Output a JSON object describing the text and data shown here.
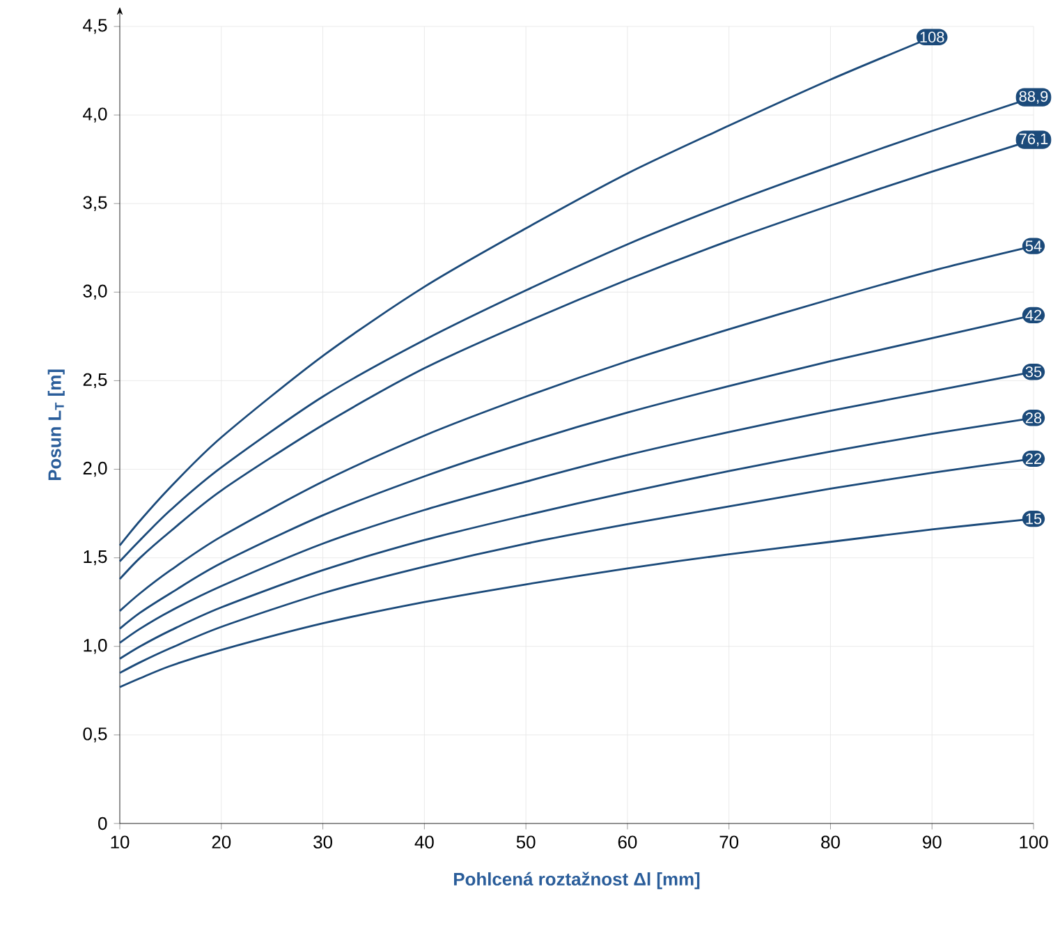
{
  "chart_data": {
    "type": "line",
    "xlabel": "Pohlcená roztažnost Δl [mm]",
    "ylabel": "Posun L$_{T}$ [m]",
    "x": [
      10,
      12,
      15,
      20,
      30,
      40,
      50,
      60,
      70,
      80,
      90,
      100
    ],
    "series": [
      {
        "name": "15",
        "color": "#1b4a7a",
        "values": [
          0.77,
          0.82,
          0.89,
          0.98,
          1.13,
          1.25,
          1.35,
          1.44,
          1.52,
          1.59,
          1.66,
          1.72
        ]
      },
      {
        "name": "22",
        "color": "#1b4a7a",
        "values": [
          0.85,
          0.91,
          0.99,
          1.11,
          1.3,
          1.45,
          1.58,
          1.69,
          1.79,
          1.89,
          1.98,
          2.06
        ]
      },
      {
        "name": "28",
        "color": "#1b4a7a",
        "values": [
          0.93,
          1.0,
          1.09,
          1.22,
          1.43,
          1.6,
          1.74,
          1.87,
          1.99,
          2.1,
          2.2,
          2.29
        ]
      },
      {
        "name": "35",
        "color": "#1b4a7a",
        "values": [
          1.02,
          1.1,
          1.2,
          1.34,
          1.58,
          1.77,
          1.93,
          2.08,
          2.21,
          2.33,
          2.44,
          2.55
        ]
      },
      {
        "name": "42",
        "color": "#1b4a7a",
        "values": [
          1.1,
          1.19,
          1.3,
          1.47,
          1.74,
          1.96,
          2.15,
          2.32,
          2.47,
          2.61,
          2.74,
          2.87
        ]
      },
      {
        "name": "54",
        "color": "#1b4a7a",
        "values": [
          1.2,
          1.3,
          1.43,
          1.62,
          1.93,
          2.19,
          2.41,
          2.61,
          2.79,
          2.96,
          3.12,
          3.26
        ]
      },
      {
        "name": "76,1",
        "color": "#1b4a7a",
        "values": [
          1.38,
          1.5,
          1.65,
          1.88,
          2.25,
          2.57,
          2.83,
          3.07,
          3.29,
          3.49,
          3.68,
          3.86
        ]
      },
      {
        "name": "88,9",
        "color": "#1b4a7a",
        "values": [
          1.48,
          1.6,
          1.77,
          2.01,
          2.41,
          2.73,
          3.01,
          3.27,
          3.5,
          3.71,
          3.91,
          4.1
        ]
      },
      {
        "name": "108",
        "color": "#1b4a7a",
        "values": [
          1.57,
          1.71,
          1.9,
          2.18,
          2.64,
          3.03,
          3.36,
          3.67,
          3.94,
          4.2,
          4.44,
          null
        ]
      }
    ],
    "xlim": [
      10,
      100
    ],
    "ylim": [
      0,
      4.5
    ],
    "xticks": [
      10,
      20,
      30,
      40,
      50,
      60,
      70,
      80,
      90,
      100
    ],
    "yticks": [
      {
        "value": 0,
        "label": "0"
      },
      {
        "value": 0.5,
        "label": "0,5"
      },
      {
        "value": 1,
        "label": "1,0"
      },
      {
        "value": 1.5,
        "label": "1,5"
      },
      {
        "value": 2,
        "label": "2,0"
      },
      {
        "value": 2.5,
        "label": "2,5"
      },
      {
        "value": 3,
        "label": "3,0"
      },
      {
        "value": 3.5,
        "label": "3,5"
      },
      {
        "value": 4,
        "label": "4,0"
      },
      {
        "value": 4.5,
        "label": "4,5"
      }
    ],
    "grid": true
  }
}
